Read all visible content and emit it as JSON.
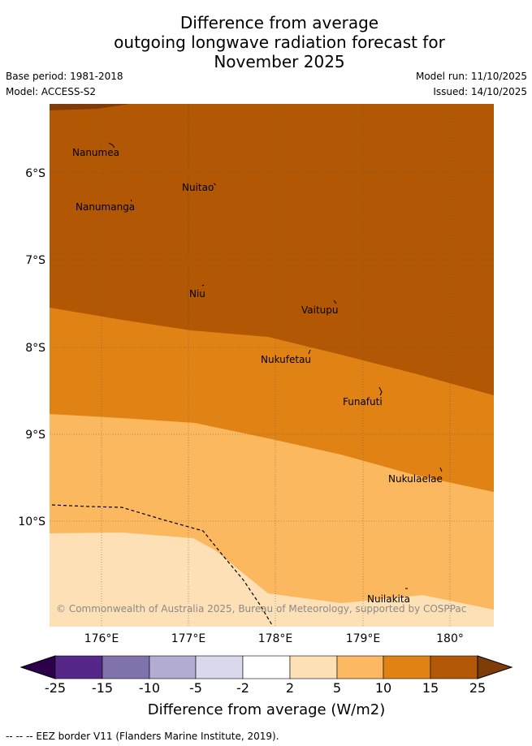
{
  "header": {
    "title_line1": "Difference from average",
    "title_line2": "outgoing longwave radiation forecast for",
    "title_line3": "November 2025",
    "base_period": "Base period: 1981-2018",
    "model": "Model: ACCESS-S2",
    "model_run": "Model run: 11/10/2025",
    "issued": "Issued: 14/10/2025"
  },
  "map": {
    "lon_labels": [
      "176°E",
      "177°E",
      "178°E",
      "179°E",
      "180°"
    ],
    "lat_labels": [
      "6°S",
      "7°S",
      "8°S",
      "9°S",
      "10°S"
    ],
    "places": [
      "Nanumea",
      "Nuitao",
      "Nanumanga",
      "Niu",
      "Vaitupu",
      "Nukufetau",
      "Funafuti",
      "Nukulaelae",
      "Nuilakita"
    ],
    "copyright": "© Commonwealth of Australia 2025, Bureau of Meteorology, supported by COSPPac",
    "colors": {
      "band_15_25": "#b25804",
      "band_10_15": "#e08214",
      "band_5_10": "#fbb85f",
      "band_2_5": "#fee0b6",
      "corner": "#7f3b08"
    }
  },
  "colorbar": {
    "ticks": [
      "-25",
      "-15",
      "-10",
      "-5",
      "-2",
      "2",
      "5",
      "10",
      "15",
      "25"
    ],
    "colors": [
      "#2d004b",
      "#542788",
      "#8073ac",
      "#b2abd2",
      "#d8daeb",
      "#ffffff",
      "#fee0b6",
      "#fdb863",
      "#e08214",
      "#b35806",
      "#7f3b08"
    ],
    "title": "Difference from average (W/m2)"
  },
  "footnote": "--  --  -- EEZ border V11 (Flanders Marine Institute, 2019)."
}
